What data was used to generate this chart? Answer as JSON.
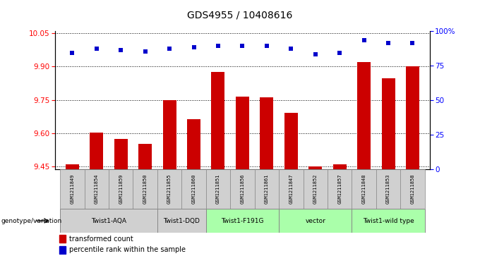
{
  "title": "GDS4955 / 10408616",
  "samples": [
    "GSM1211849",
    "GSM1211854",
    "GSM1211859",
    "GSM1211850",
    "GSM1211855",
    "GSM1211860",
    "GSM1211851",
    "GSM1211856",
    "GSM1211861",
    "GSM1211847",
    "GSM1211852",
    "GSM1211857",
    "GSM1211848",
    "GSM1211853",
    "GSM1211858"
  ],
  "bar_values": [
    9.462,
    9.603,
    9.576,
    9.553,
    9.748,
    9.663,
    9.875,
    9.763,
    9.762,
    9.693,
    9.452,
    9.462,
    9.918,
    9.848,
    9.9
  ],
  "percentile_values": [
    84,
    87,
    86,
    85,
    87,
    88,
    89,
    89,
    89,
    87,
    83,
    84,
    93,
    91,
    91
  ],
  "ylim_left": [
    9.44,
    10.06
  ],
  "ylim_right": [
    0,
    100
  ],
  "yticks_left": [
    9.45,
    9.6,
    9.75,
    9.9,
    10.05
  ],
  "yticks_right": [
    0,
    25,
    50,
    75,
    100
  ],
  "groups_def": [
    {
      "label": "Twist1-AQA",
      "indices": [
        0,
        1,
        2,
        3
      ],
      "color": "#d0d0d0"
    },
    {
      "label": "Twist1-DQD",
      "indices": [
        4,
        5
      ],
      "color": "#d0d0d0"
    },
    {
      "label": "Twist1-F191G",
      "indices": [
        6,
        7,
        8
      ],
      "color": "#aaffaa"
    },
    {
      "label": "vector",
      "indices": [
        9,
        10,
        11
      ],
      "color": "#aaffaa"
    },
    {
      "label": "Twist1-wild type",
      "indices": [
        12,
        13,
        14
      ],
      "color": "#aaffaa"
    }
  ],
  "bar_color": "#cc0000",
  "dot_color": "#0000cc",
  "legend_label_bar": "transformed count",
  "legend_label_dot": "percentile rank within the sample",
  "genotype_label": "genotype/variation",
  "bg_color": "#ffffff",
  "sample_box_color": "#d0d0d0"
}
